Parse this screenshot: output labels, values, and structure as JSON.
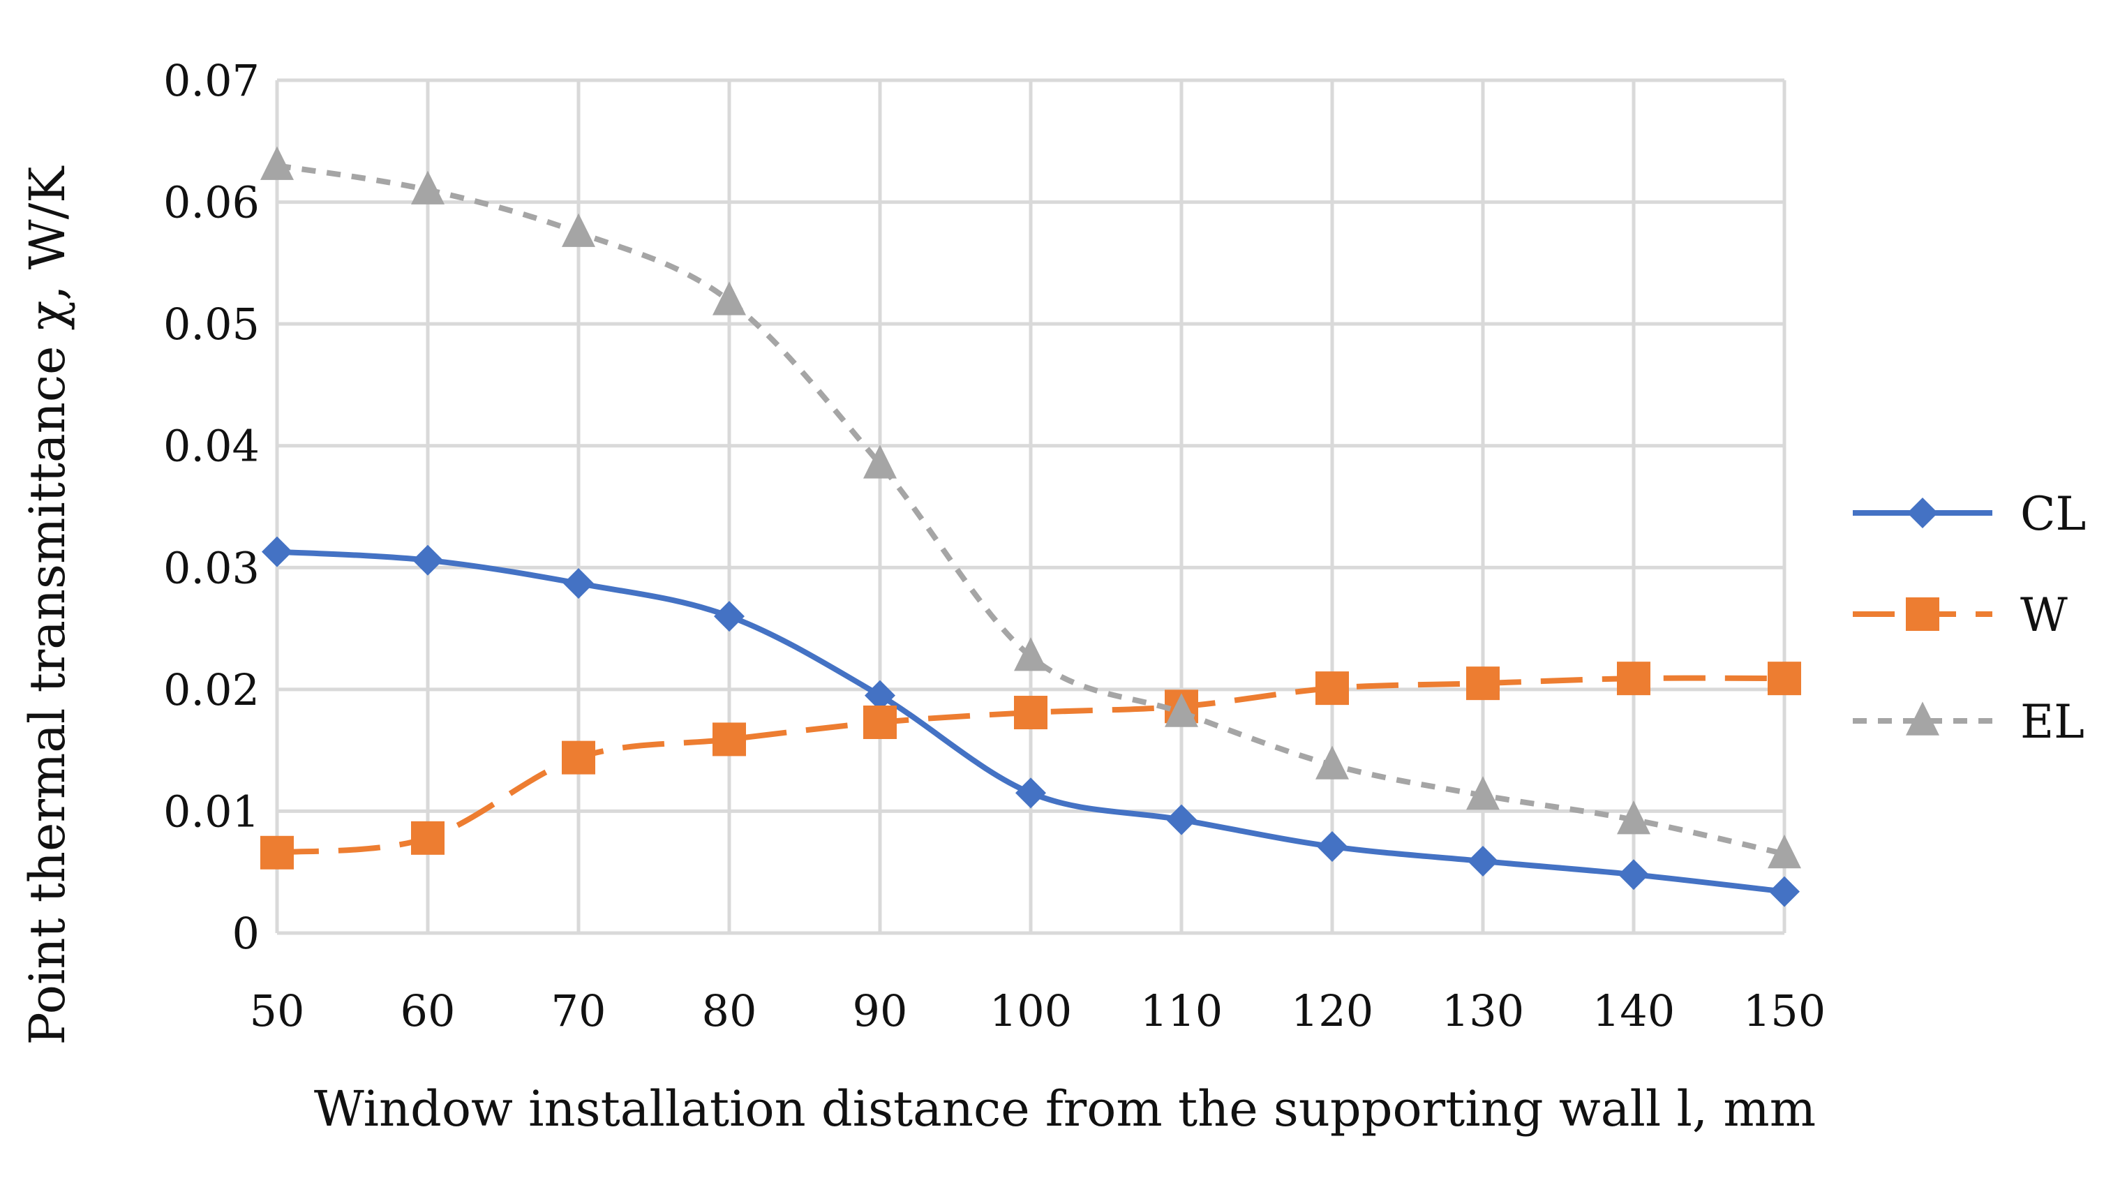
{
  "chart_data": {
    "type": "line",
    "title": "",
    "xlabel": "Window installation distance from the supporting wall l, mm",
    "ylabel": "Point thermal transmittance χ, W/K",
    "x": [
      50,
      60,
      70,
      80,
      90,
      100,
      110,
      120,
      130,
      140,
      150
    ],
    "x_tick_labels": [
      "50",
      "60",
      "70",
      "80",
      "90",
      "100",
      "110",
      "120",
      "130",
      "140",
      "150"
    ],
    "ylim": [
      0,
      0.07
    ],
    "y_ticks": [
      0,
      0.01,
      0.02,
      0.03,
      0.04,
      0.05,
      0.06,
      0.07
    ],
    "y_tick_labels": [
      "0",
      "0.01",
      "0.02",
      "0.03",
      "0.04",
      "0.05",
      "0.06",
      "0.07"
    ],
    "grid": true,
    "legend_position": "right",
    "series": [
      {
        "name": "CL",
        "color": "#4472C4",
        "marker": "diamond",
        "line_style": "solid",
        "values": [
          0.0313,
          0.0306,
          0.0287,
          0.026,
          0.0195,
          0.0115,
          0.0093,
          0.0071,
          0.0059,
          0.0048,
          0.0034
        ]
      },
      {
        "name": "W",
        "color": "#ED7D31",
        "marker": "square",
        "line_style": "long-dash",
        "values": [
          0.0066,
          0.0078,
          0.0144,
          0.0159,
          0.0173,
          0.0181,
          0.0186,
          0.0201,
          0.0205,
          0.0209,
          0.0209
        ]
      },
      {
        "name": "EL",
        "color": "#A5A5A5",
        "marker": "triangle",
        "line_style": "dotted",
        "values": [
          0.063,
          0.061,
          0.0575,
          0.0519,
          0.0385,
          0.0227,
          0.0181,
          0.0138,
          0.0113,
          0.0093,
          0.0065
        ]
      }
    ]
  }
}
